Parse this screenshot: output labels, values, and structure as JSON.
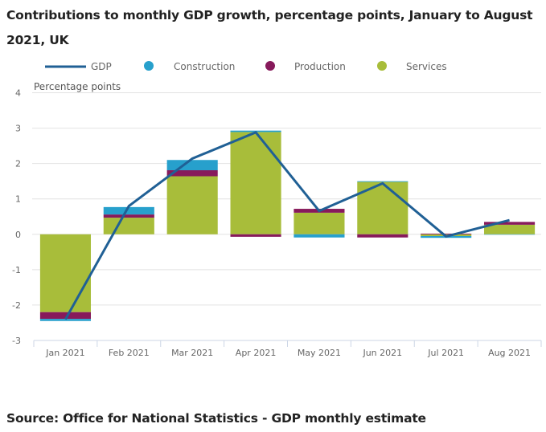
{
  "title": "Contributions to monthly GDP growth, percentage points, January to August 2021, UK",
  "source": "Source: Office for National Statistics - GDP monthly estimate",
  "colors": {
    "GDP": "#206095",
    "Construction": "#27a0cc",
    "Production": "#871a5b",
    "Services": "#a8bd3a",
    "grid": "#e2e2e2",
    "axis": "#ccd6e6"
  },
  "chart_data": {
    "type": "bar",
    "subtype": "stacked bar with line overlay",
    "title": "Contributions to monthly GDP growth, percentage points, January to August 2021, UK",
    "xlabel": "",
    "ylabel": "Percentage points",
    "ylim": [
      -3,
      4
    ],
    "yticks": [
      4,
      3,
      2,
      1,
      0,
      -1,
      -2,
      -3
    ],
    "grid": true,
    "legend_position": "top",
    "legend": [
      "GDP",
      "Construction",
      "Production",
      "Services"
    ],
    "categories": [
      "Jan 2021",
      "Feb 2021",
      "Mar 2021",
      "Apr 2021",
      "May 2021",
      "Jun 2021",
      "Jul 2021",
      "Aug 2021"
    ],
    "stack_order": [
      "Services",
      "Production",
      "Construction"
    ],
    "series": [
      {
        "name": "Services",
        "type": "bar",
        "values": [
          -2.2,
          0.47,
          1.64,
          2.89,
          0.61,
          1.48,
          -0.05,
          0.27
        ]
      },
      {
        "name": "Production",
        "type": "bar",
        "values": [
          -0.19,
          0.09,
          0.17,
          -0.07,
          0.11,
          -0.09,
          0.02,
          0.08
        ]
      },
      {
        "name": "Construction",
        "type": "bar",
        "values": [
          -0.06,
          0.21,
          0.29,
          0.04,
          -0.09,
          0.02,
          -0.05,
          -0.01
        ]
      },
      {
        "name": "GDP",
        "type": "line",
        "values": [
          -2.4,
          0.8,
          2.14,
          2.88,
          0.66,
          1.44,
          -0.06,
          0.4
        ]
      }
    ]
  }
}
